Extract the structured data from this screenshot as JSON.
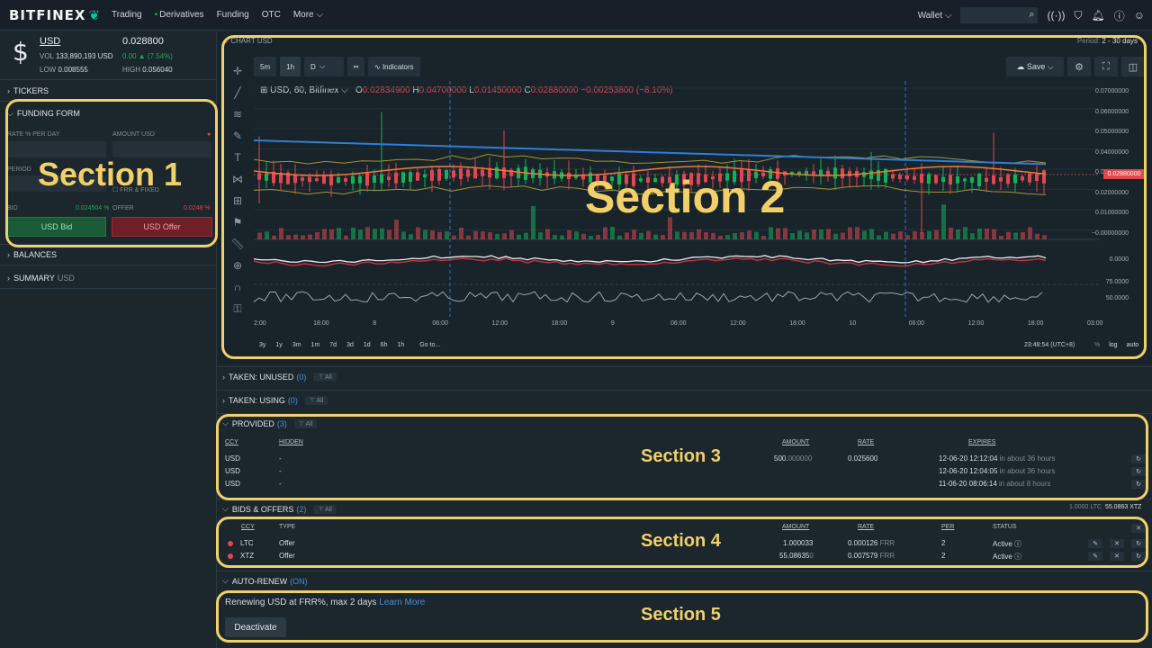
{
  "topbar": {
    "logo": "BITFINEX",
    "nav": [
      "Trading",
      "Derivatives",
      "Funding",
      "OTC",
      "More"
    ],
    "wallet_label": "Wallet"
  },
  "ticker": {
    "symbol": "USD",
    "last_price": "0.028800",
    "vol_label": "VOL",
    "vol_value": "133,890,193 USD",
    "change": "0.00 ▲ (7.54%)",
    "low_label": "LOW",
    "low_value": "0.008555",
    "high_label": "HIGH",
    "high_value": "0.056040"
  },
  "left_sections": {
    "tickers": "TICKERS",
    "funding_form": "FUNDING FORM",
    "balances": "BALANCES",
    "summary": "SUMMARY",
    "summary_sub": "USD"
  },
  "funding_form": {
    "rate_label": "RATE % PER DAY",
    "amount_label": "AMOUNT USD",
    "period_label": "PERIOD",
    "frr_label": "FRR & FIXED",
    "bid_label": "BID",
    "bid_value": "0.024504 %",
    "offer_label": "OFFER",
    "offer_value": "0.0248 %",
    "bid_button": "USD Bid",
    "offer_button": "USD Offer"
  },
  "chart": {
    "header": "CHART",
    "header_sub": "USD",
    "period_label": "Period:",
    "period_value": "2 - 30 days",
    "intervals": [
      "5m",
      "1h",
      "D"
    ],
    "indicators_label": "Indicators",
    "save_label": "Save",
    "legend": {
      "symbol": "USD, 60, Bitfinex",
      "o": "0.02834900",
      "h": "0.04700000",
      "l": "0.01450000",
      "c": "0.02880000",
      "chg": "−0.00253800 (−8.10%)"
    },
    "price_tag": "0.02880000",
    "clock": "23:48:54 (UTC+8)",
    "timeframes": [
      "3y",
      "1y",
      "3m",
      "1m",
      "7d",
      "3d",
      "1d",
      "6h",
      "1h",
      "Go to..."
    ],
    "scale_options": [
      "%",
      "log",
      "auto"
    ]
  },
  "chart_data": {
    "type": "line",
    "y_ticks": [
      "0.07000000",
      "0.06000000",
      "0.05000000",
      "0.04000000",
      "0.03000000",
      "0.02000000",
      "0.01000000",
      "−0.00000000"
    ],
    "osc_ticks": [
      "0.0000",
      "75.0000",
      "50.0000"
    ],
    "x_ticks": [
      "2:00",
      "18:00",
      "8",
      "06:00",
      "12:00",
      "18:00",
      "9",
      "06:00",
      "12:00",
      "18:00",
      "10",
      "06:00",
      "12:00",
      "18:00",
      "03:00"
    ],
    "colors": {
      "up": "#16b157",
      "down": "#e0474e",
      "ma_slow": "#2f7fd6",
      "band": "#c7b13a"
    }
  },
  "taken_unused": {
    "label": "TAKEN: UNUSED",
    "count": "(0)",
    "filter": "All"
  },
  "taken_using": {
    "label": "TAKEN: USING",
    "count": "(0)",
    "filter": "All"
  },
  "provided": {
    "label": "PROVIDED",
    "count": "(3)",
    "filter": "All",
    "columns": [
      "CCY",
      "HIDDEN",
      "AMOUNT",
      "RATE",
      "EXPIRES"
    ],
    "rows": [
      {
        "ccy": "USD",
        "hidden": "-",
        "amount": "500.",
        "amount_dim": "000000",
        "rate": "0.025600",
        "expires": "12-06-20 12:12:04",
        "rel": "in about 36 hours"
      },
      {
        "ccy": "USD",
        "hidden": "-",
        "amount": "",
        "amount_dim": "",
        "rate": "",
        "expires": "12-06-20 12:04:05",
        "rel": "in about 36 hours"
      },
      {
        "ccy": "USD",
        "hidden": "-",
        "amount": "",
        "amount_dim": "",
        "rate": "",
        "expires": "11-06-20 08:06:14",
        "rel": "in about 8 hours"
      }
    ]
  },
  "bids_offers": {
    "label": "BIDS & OFFERS",
    "count": "(2)",
    "filter": "All",
    "summary_ltc": "1.0000 LTC",
    "summary_xtz": "55.0863 XTZ",
    "columns": [
      "CCY",
      "TYPE",
      "AMOUNT",
      "RATE",
      "PER",
      "STATUS"
    ],
    "rows": [
      {
        "ccy": "LTC",
        "type": "Offer",
        "amount": "1.000033",
        "rate": "0.000126",
        "frr": "FRR",
        "per": "2",
        "status": "Active"
      },
      {
        "ccy": "XTZ",
        "type": "Offer",
        "amount": "55.08635",
        "amount_dim": "0",
        "rate": "0.007579",
        "frr": "FRR",
        "per": "2",
        "status": "Active"
      }
    ]
  },
  "auto_renew": {
    "label": "AUTO-RENEW",
    "state": "(ON)",
    "text": "Renewing USD at FRR%, max 2 days",
    "link": "Learn More",
    "button": "Deactivate"
  },
  "annotations": [
    "Section 1",
    "Section 2",
    "Section 3",
    "Section 4",
    "Section 5"
  ]
}
